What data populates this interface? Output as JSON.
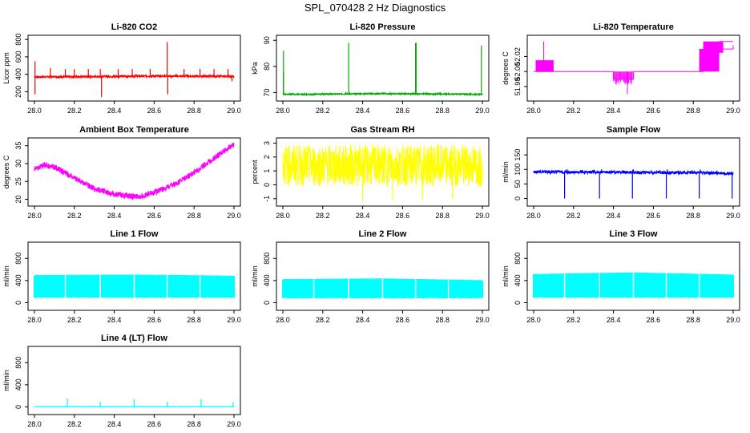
{
  "figure_title": "SPL_070428  2 Hz Diagnostics",
  "chart_data": [
    {
      "type": "line",
      "title": "Li-820 CO2",
      "ylabel": "Licor ppm",
      "color": "#ff0000",
      "xlim": [
        28.0,
        29.0
      ],
      "ylim": [
        130,
        820
      ],
      "yticks": [
        200,
        400,
        600,
        800
      ],
      "ytick_labels": [
        "200",
        "400",
        "600",
        "800"
      ],
      "xticks": [
        28.0,
        28.2,
        28.4,
        28.6,
        28.8,
        29.0
      ],
      "xtick_labels": [
        "28.0",
        "28.2",
        "28.4",
        "28.6",
        "28.8",
        "29.0"
      ],
      "x": [
        28.0,
        28.2,
        28.4,
        28.6,
        28.8,
        29.0
      ],
      "y": [
        370,
        372,
        375,
        380,
        378,
        376
      ],
      "baseline": 376,
      "band": 10,
      "spikes": [
        [
          28.003,
          550
        ],
        [
          28.003,
          170
        ],
        [
          28.08,
          470
        ],
        [
          28.155,
          460
        ],
        [
          28.2,
          460
        ],
        [
          28.27,
          460
        ],
        [
          28.33,
          460
        ],
        [
          28.336,
          140
        ],
        [
          28.42,
          460
        ],
        [
          28.49,
          460
        ],
        [
          28.58,
          460
        ],
        [
          28.665,
          770
        ],
        [
          28.668,
          170
        ],
        [
          28.75,
          460
        ],
        [
          28.83,
          460
        ],
        [
          28.9,
          460
        ],
        [
          28.97,
          460
        ],
        [
          28.99,
          320
        ]
      ]
    },
    {
      "type": "line",
      "title": "Li-820 Pressure",
      "ylabel": "kPa",
      "color": "#00aa00",
      "xlim": [
        28.0,
        29.0
      ],
      "ylim": [
        68,
        91
      ],
      "yticks": [
        70,
        80,
        90
      ],
      "ytick_labels": [
        "70",
        "80",
        "90"
      ],
      "xticks": [
        28.0,
        28.2,
        28.4,
        28.6,
        28.8,
        29.0
      ],
      "xtick_labels": [
        "28.0",
        "28.2",
        "28.4",
        "28.6",
        "28.8",
        "29.0"
      ],
      "x": [
        28.0,
        28.1,
        28.3,
        28.5,
        28.7,
        28.9,
        29.0
      ],
      "y": [
        69.4,
        69.3,
        69.5,
        69.6,
        69.5,
        69.4,
        69.3
      ],
      "baseline": 69.5,
      "band": 0.2,
      "spikes": [
        [
          28.003,
          86
        ],
        [
          28.003,
          78
        ],
        [
          28.33,
          89
        ],
        [
          28.665,
          89
        ],
        [
          28.668,
          89
        ],
        [
          28.995,
          88
        ]
      ]
    },
    {
      "type": "step",
      "title": "Li-820 Temperature",
      "ylabel": "degrees C",
      "color": "#ff00ff",
      "xlim": [
        28.0,
        29.0
      ],
      "ylim": [
        51.965,
        52.045
      ],
      "yticks": [
        51.98,
        52.0,
        52.02
      ],
      "ytick_labels": [
        "51.98",
        "52.00",
        "52.02"
      ],
      "xticks": [
        28.0,
        28.2,
        28.4,
        28.6,
        28.8,
        29.0
      ],
      "xtick_labels": [
        "28.0",
        "28.2",
        "28.4",
        "28.6",
        "28.8",
        "29.0"
      ],
      "x": [
        28.0,
        28.1,
        28.4,
        28.5,
        28.8,
        28.85,
        28.9,
        29.0
      ],
      "y": [
        52.0,
        52.0,
        51.99,
        52.0,
        52.0,
        52.02,
        52.03,
        52.035
      ],
      "baseline": 52.0,
      "band": 0,
      "spikes": []
    },
    {
      "type": "line",
      "title": "Ambient Box Temperature",
      "ylabel": "degrees C",
      "color": "#ff00ff",
      "xlim": [
        28.0,
        29.0
      ],
      "ylim": [
        19,
        36.5
      ],
      "yticks": [
        20,
        25,
        30,
        35
      ],
      "ytick_labels": [
        "20",
        "25",
        "30",
        "35"
      ],
      "xticks": [
        28.0,
        28.2,
        28.4,
        28.6,
        28.8,
        29.0
      ],
      "xtick_labels": [
        "28.0",
        "28.2",
        "28.4",
        "28.6",
        "28.8",
        "29.0"
      ],
      "x": [
        28.0,
        28.05,
        28.1,
        28.2,
        28.3,
        28.4,
        28.5,
        28.55,
        28.6,
        28.7,
        28.8,
        28.9,
        29.0
      ],
      "y": [
        28.5,
        29.5,
        29.0,
        26.0,
        23.0,
        21.5,
        20.8,
        21.0,
        22.0,
        24.0,
        27.5,
        31.5,
        35.5
      ],
      "baseline": null,
      "band": 0.8,
      "spikes": []
    },
    {
      "type": "line",
      "title": "Gas Stream RH",
      "ylabel": "percent",
      "color": "#ffff00",
      "xlim": [
        28.0,
        29.0
      ],
      "ylim": [
        -1.3,
        3.2
      ],
      "yticks": [
        -1,
        0,
        1,
        2,
        3
      ],
      "ytick_labels": [
        "-1",
        "0",
        "1",
        "2",
        "3"
      ],
      "xticks": [
        28.0,
        28.2,
        28.4,
        28.6,
        28.8,
        29.0
      ],
      "xtick_labels": [
        "28.0",
        "28.2",
        "28.4",
        "28.6",
        "28.8",
        "29.0"
      ],
      "x": [
        28.0,
        28.5,
        29.0
      ],
      "y": [
        1.4,
        1.4,
        1.4
      ],
      "baseline": 1.4,
      "band": 1.5,
      "spikes": [
        [
          28.4,
          -1.2
        ],
        [
          28.55,
          -1.1
        ],
        [
          28.7,
          -1.1
        ],
        [
          28.85,
          -1.0
        ]
      ]
    },
    {
      "type": "line",
      "title": "Sample Flow",
      "ylabel": "ml/min",
      "color": "#0000ff",
      "xlim": [
        28.0,
        29.0
      ],
      "ylim": [
        -15,
        200
      ],
      "yticks": [
        0,
        50,
        100,
        150
      ],
      "ytick_labels": [
        "0",
        "50",
        "100",
        "150"
      ],
      "xticks": [
        28.0,
        28.2,
        28.4,
        28.6,
        28.8,
        29.0
      ],
      "xtick_labels": [
        "28.0",
        "28.2",
        "28.4",
        "28.6",
        "28.8",
        "29.0"
      ],
      "x": [
        28.0,
        28.2,
        28.5,
        28.8,
        29.0
      ],
      "y": [
        92,
        91,
        90,
        89,
        86
      ],
      "baseline": 90,
      "band": 5,
      "spikes": [
        [
          28.155,
          0
        ],
        [
          28.165,
          100
        ],
        [
          28.33,
          0
        ],
        [
          28.34,
          100
        ],
        [
          28.495,
          0
        ],
        [
          28.5,
          100
        ],
        [
          28.665,
          0
        ],
        [
          28.67,
          100
        ],
        [
          28.83,
          0
        ],
        [
          28.835,
          100
        ],
        [
          28.995,
          0
        ]
      ]
    },
    {
      "type": "band",
      "title": "Line 1 Flow",
      "ylabel": "ml/min",
      "color": "#00ffff",
      "xlim": [
        28.0,
        29.0
      ],
      "ylim": [
        -80,
        1050
      ],
      "yticks": [
        0,
        400,
        800
      ],
      "ytick_labels": [
        "0",
        "400",
        "800"
      ],
      "xticks": [
        28.0,
        28.2,
        28.4,
        28.6,
        28.8,
        29.0
      ],
      "xtick_labels": [
        "28.0",
        "28.2",
        "28.4",
        "28.6",
        "28.8",
        "29.0"
      ],
      "x": [
        28.0,
        28.5,
        29.0
      ],
      "y": [
        490,
        500,
        480
      ],
      "low": 90,
      "spikes": [
        [
          28.155,
          300
        ],
        [
          28.33,
          300
        ],
        [
          28.5,
          300
        ],
        [
          28.665,
          300
        ],
        [
          28.83,
          300
        ]
      ]
    },
    {
      "type": "band",
      "title": "Line 2 Flow",
      "ylabel": "ml/min",
      "color": "#00ffff",
      "xlim": [
        28.0,
        29.0
      ],
      "ylim": [
        -80,
        1050
      ],
      "yticks": [
        0,
        400,
        800
      ],
      "ytick_labels": [
        "0",
        "400",
        "800"
      ],
      "xticks": [
        28.0,
        28.2,
        28.4,
        28.6,
        28.8,
        29.0
      ],
      "xtick_labels": [
        "28.0",
        "28.2",
        "28.4",
        "28.6",
        "28.8",
        "29.0"
      ],
      "x": [
        28.0,
        28.5,
        29.0
      ],
      "y": [
        420,
        430,
        400
      ],
      "low": 80,
      "spikes": [
        [
          28.155,
          300
        ],
        [
          28.33,
          300
        ],
        [
          28.5,
          300
        ],
        [
          28.665,
          300
        ],
        [
          28.83,
          300
        ]
      ]
    },
    {
      "type": "band",
      "title": "Line 3 Flow",
      "ylabel": "ml/min",
      "color": "#00ffff",
      "xlim": [
        28.0,
        29.0
      ],
      "ylim": [
        -80,
        1050
      ],
      "yticks": [
        0,
        400,
        800
      ],
      "ytick_labels": [
        "0",
        "400",
        "800"
      ],
      "xticks": [
        28.0,
        28.2,
        28.4,
        28.6,
        28.8,
        29.0
      ],
      "xtick_labels": [
        "28.0",
        "28.2",
        "28.4",
        "28.6",
        "28.8",
        "29.0"
      ],
      "x": [
        28.0,
        28.5,
        29.0
      ],
      "y": [
        510,
        540,
        500
      ],
      "low": 90,
      "spikes": [
        [
          28.155,
          300
        ],
        [
          28.33,
          300
        ],
        [
          28.5,
          300
        ],
        [
          28.665,
          300
        ],
        [
          28.83,
          300
        ]
      ]
    },
    {
      "type": "line",
      "title": "Line 4 (LT) Flow",
      "ylabel": "ml/min",
      "color": "#00ffff",
      "xlim": [
        28.0,
        29.0
      ],
      "ylim": [
        -80,
        1050
      ],
      "yticks": [
        0,
        400,
        800
      ],
      "ytick_labels": [
        "0",
        "400",
        "800"
      ],
      "xticks": [
        28.0,
        28.2,
        28.4,
        28.6,
        28.8,
        29.0
      ],
      "xtick_labels": [
        "28.0",
        "28.2",
        "28.4",
        "28.6",
        "28.8",
        "29.0"
      ],
      "x": [
        28.0,
        28.5,
        29.0
      ],
      "y": [
        5,
        5,
        5
      ],
      "baseline": 5,
      "band": 2,
      "spikes": [
        [
          28.165,
          150
        ],
        [
          28.33,
          90
        ],
        [
          28.5,
          140
        ],
        [
          28.665,
          90
        ],
        [
          28.835,
          140
        ],
        [
          28.995,
          80
        ]
      ]
    }
  ]
}
